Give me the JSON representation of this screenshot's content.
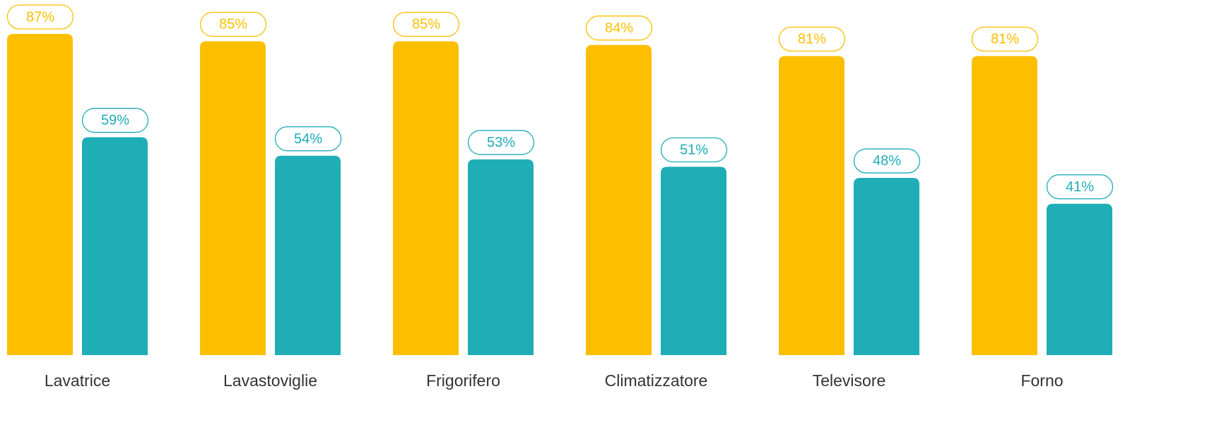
{
  "chart_data": {
    "type": "bar",
    "categories": [
      "Lavatrice",
      "Lavastoviglie",
      "Frigorifero",
      "Climatizzatore",
      "Televisore",
      "Forno"
    ],
    "series": [
      {
        "color": "#fcbf00",
        "values": [
          87,
          85,
          85,
          84,
          81,
          81
        ],
        "value_labels": [
          "87%",
          "85%",
          "85%",
          "84%",
          "81%",
          "81%"
        ]
      },
      {
        "color": "#1fadb6",
        "values": [
          59,
          54,
          53,
          51,
          48,
          41
        ],
        "value_labels": [
          "59%",
          "54%",
          "53%",
          "51%",
          "48%",
          "41%"
        ]
      }
    ],
    "ylim": [
      0,
      100
    ]
  }
}
